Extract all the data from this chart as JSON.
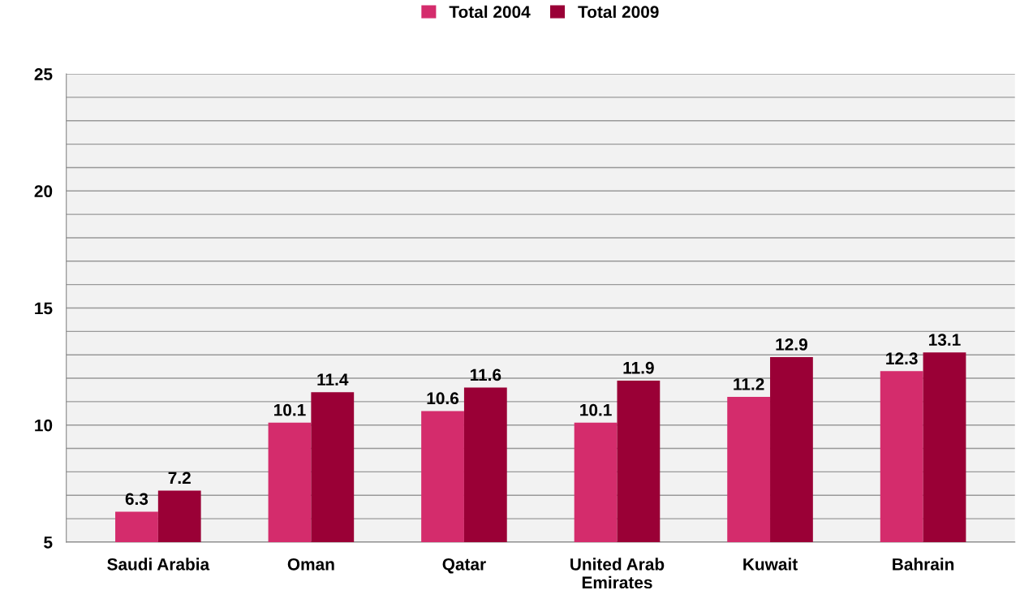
{
  "chart_data": {
    "type": "bar",
    "categories": [
      "Saudi Arabia",
      "Oman",
      "Qatar",
      "United Arab\nEmirates",
      "Kuwait",
      "Bahrain"
    ],
    "series": [
      {
        "name": "Total 2004",
        "color": "#d42c6c",
        "values": [
          6.3,
          10.1,
          10.6,
          10.1,
          11.2,
          12.3
        ]
      },
      {
        "name": "Total 2009",
        "color": "#9a0036",
        "values": [
          7.2,
          11.4,
          11.6,
          11.9,
          12.9,
          13.1
        ]
      }
    ],
    "ylim": [
      5,
      25
    ],
    "yticks": [
      5,
      {
        "value": 6,
        "label": null
      },
      {
        "value": 7,
        "label": null
      },
      {
        "value": 8,
        "label": null
      },
      {
        "value": 9,
        "label": null
      },
      10,
      {
        "value": 11,
        "label": null
      },
      {
        "value": 12,
        "label": null
      },
      {
        "value": 13,
        "label": null
      },
      {
        "value": 14,
        "label": null
      },
      15,
      {
        "value": 16,
        "label": null
      },
      {
        "value": 17,
        "label": null
      },
      {
        "value": 18,
        "label": null
      },
      {
        "value": 19,
        "label": null
      },
      20,
      {
        "value": 21,
        "label": null
      },
      {
        "value": 22,
        "label": null
      },
      {
        "value": 23,
        "label": null
      },
      {
        "value": 24,
        "label": null
      },
      25
    ],
    "grid": "y",
    "legend": "top",
    "data_labels": true
  }
}
